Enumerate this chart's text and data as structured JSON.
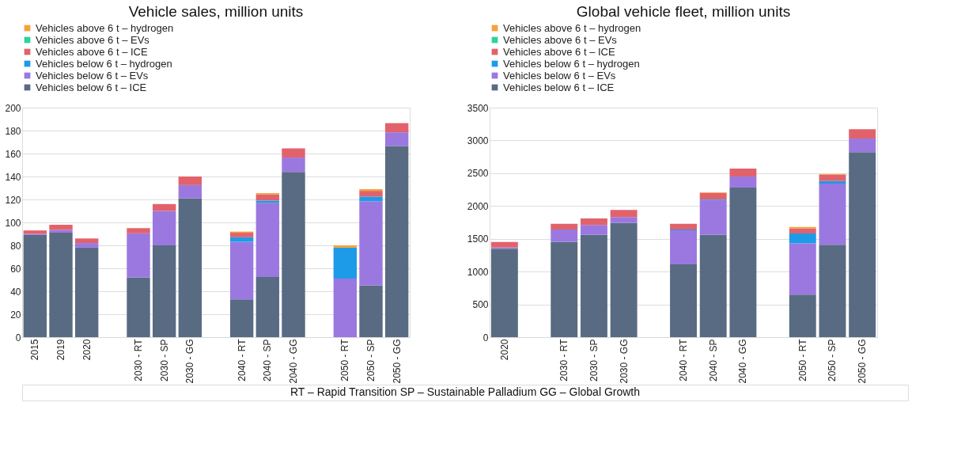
{
  "chart_data": [
    {
      "type": "bar",
      "title": "Vehicle sales, million units",
      "stacked": true,
      "grid": "y",
      "legend": "top",
      "categories": [
        "2015",
        "2019",
        "2020",
        null,
        "2030 - RT",
        "2030 - SP",
        "2030 - GG",
        null,
        "2040 - RT",
        "2040 - SP",
        "2040 - GG",
        null,
        "2050 - RT",
        "2050 - SP",
        "2050 - GG"
      ],
      "ylim": [
        0,
        200
      ],
      "yticks": [
        0,
        20,
        40,
        60,
        80,
        100,
        120,
        140,
        160,
        180,
        200
      ],
      "series": [
        {
          "name": "Vehicles below 6 t – ICE",
          "color": "#586b82",
          "values": [
            89,
            91,
            78,
            null,
            52,
            80,
            121,
            null,
            33,
            52.5,
            144,
            null,
            null,
            45,
            166.5
          ]
        },
        {
          "name": "Vehicles below 6 t – EVs",
          "color": "#9b78e0",
          "values": [
            1,
            2.5,
            4,
            null,
            38.5,
            30,
            11.5,
            null,
            50,
            64.5,
            12.5,
            null,
            51,
            73.5,
            12
          ]
        },
        {
          "name": "Vehicles below 6 t – hydrogen",
          "color": "#1e9be8",
          "values": [
            null,
            null,
            null,
            null,
            null,
            null,
            null,
            null,
            4,
            2,
            null,
            null,
            27,
            4,
            null
          ]
        },
        {
          "name": "Vehicles above 6 t – ICE",
          "color": "#e2626b",
          "values": [
            3,
            4.5,
            4,
            null,
            4.5,
            6,
            7.5,
            null,
            4,
            5.5,
            8,
            null,
            null,
            5,
            8
          ]
        },
        {
          "name": "Vehicles above 6 t – EVs",
          "color": "#2fd39a",
          "values": [
            null,
            null,
            null,
            null,
            null,
            null,
            null,
            null,
            null,
            null,
            null,
            null,
            null,
            null,
            null
          ]
        },
        {
          "name": "Vehicles above 6 t – hydrogen",
          "color": "#f5a23a",
          "values": [
            null,
            null,
            null,
            null,
            null,
            null,
            null,
            null,
            1,
            1,
            null,
            null,
            2,
            1.5,
            null
          ]
        }
      ],
      "annotations": [
        "RT – Rapid Transition    SP – Sustainable Palladium    GG – Global Growth"
      ]
    },
    {
      "type": "bar",
      "title": "Global vehicle fleet, million units",
      "stacked": true,
      "grid": "y",
      "legend": "top",
      "categories": [
        "2020",
        null,
        "2030 - RT",
        "2030 - SP",
        "2030 - GG",
        null,
        "2040 - RT",
        "2040 - SP",
        "2040 - GG",
        null,
        "2050 - RT",
        "2050 - SP",
        "2050 - GG"
      ],
      "ylim": [
        0,
        3500
      ],
      "yticks": [
        0,
        500,
        1000,
        1500,
        2000,
        2500,
        3000,
        3500
      ],
      "series": [
        {
          "name": "Vehicles below 6 t – ICE",
          "color": "#586b82",
          "values": [
            1350,
            null,
            1450,
            1560,
            1740,
            null,
            1110,
            1560,
            2280,
            null,
            650,
            1410,
            2820
          ]
        },
        {
          "name": "Vehicles below 6 t – EVs",
          "color": "#9b78e0",
          "values": [
            20,
            null,
            190,
            150,
            90,
            null,
            520,
            530,
            170,
            null,
            780,
            930,
            210
          ]
        },
        {
          "name": "Vehicles below 6 t – hydrogen",
          "color": "#1e9be8",
          "values": [
            null,
            null,
            null,
            null,
            null,
            null,
            10,
            10,
            null,
            null,
            150,
            40,
            null
          ]
        },
        {
          "name": "Vehicles above 6 t – ICE",
          "color": "#e2626b",
          "values": [
            80,
            null,
            90,
            100,
            110,
            null,
            90,
            100,
            120,
            null,
            80,
            100,
            140
          ]
        },
        {
          "name": "Vehicles above 6 t – EVs",
          "color": "#2fd39a",
          "values": [
            null,
            null,
            null,
            null,
            null,
            null,
            null,
            null,
            null,
            null,
            null,
            null,
            null
          ]
        },
        {
          "name": "Vehicles above 6 t – hydrogen",
          "color": "#f5a23a",
          "values": [
            null,
            null,
            null,
            null,
            null,
            null,
            null,
            10,
            null,
            null,
            20,
            10,
            null
          ]
        }
      ]
    }
  ]
}
